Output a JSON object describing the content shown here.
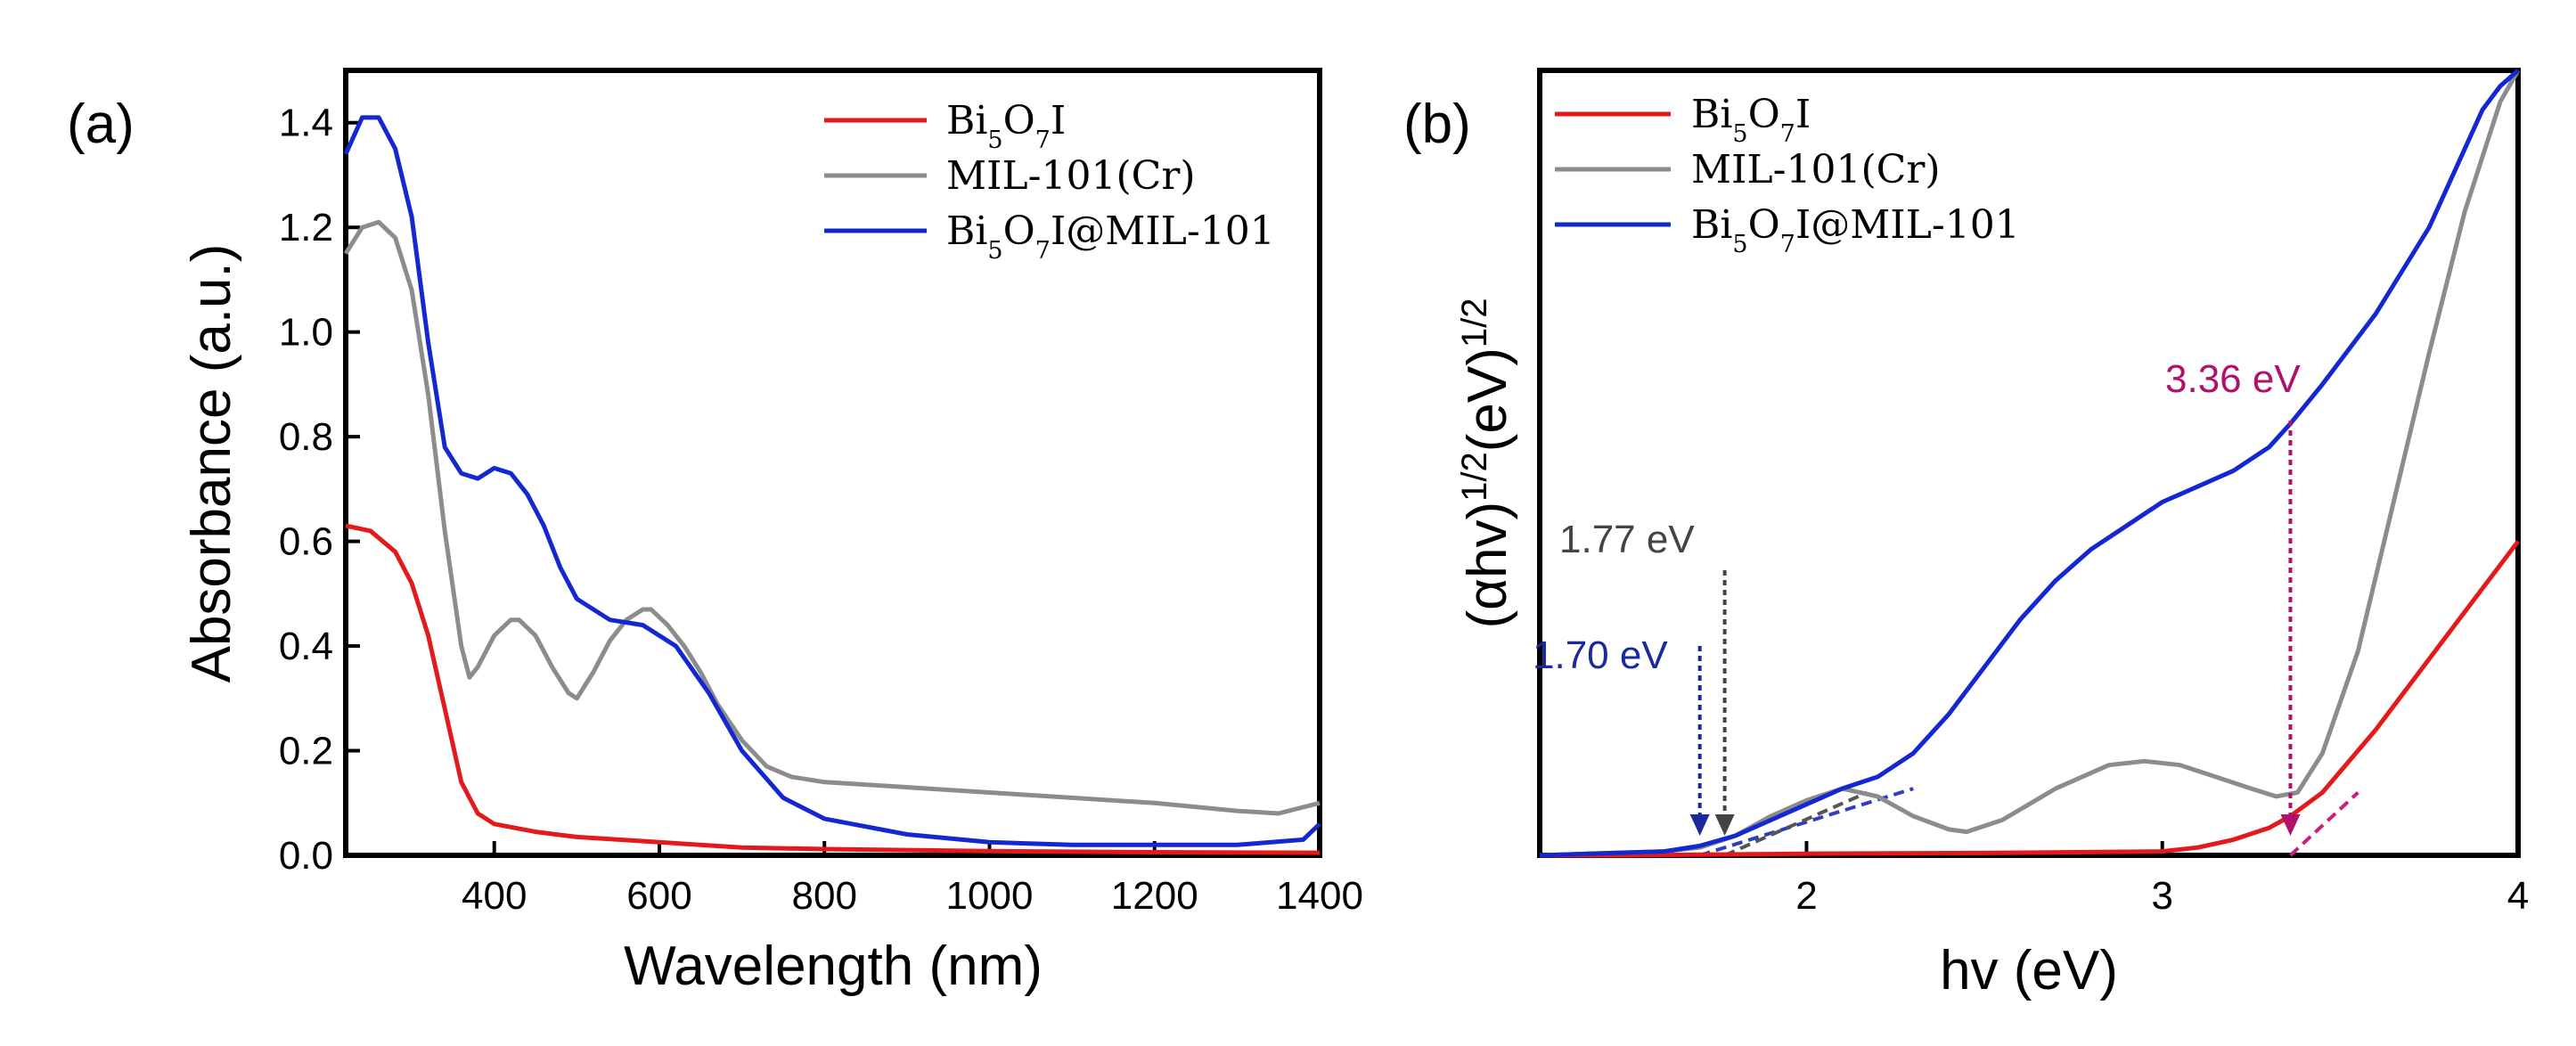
{
  "chart_data": [
    {
      "type": "line",
      "panel_label": "(a)",
      "xlabel": "Wavelength (nm)",
      "ylabel": "Absorbance (a.u.)",
      "xlim": [
        220,
        1400
      ],
      "ylim": [
        0,
        1.5
      ],
      "xticks": [
        400,
        600,
        800,
        1000,
        1200,
        1400
      ],
      "xtick_labels": [
        "400",
        "600",
        "800",
        "1000",
        "1200",
        "1400"
      ],
      "yticks": [
        0.0,
        0.2,
        0.4,
        0.6,
        0.8,
        1.0,
        1.2,
        1.4
      ],
      "ytick_labels": [
        "0.0",
        "0.2",
        "0.4",
        "0.6",
        "0.8",
        "1.0",
        "1.2",
        "1.4"
      ],
      "legend_position": "top-right",
      "series": [
        {
          "name": "Bi5O7I",
          "legend_parts": [
            [
              "Bi",
              ""
            ],
            [
              "5",
              "sub"
            ],
            [
              "O",
              ""
            ],
            [
              "7",
              "sub"
            ],
            [
              "I",
              ""
            ]
          ],
          "color": "#e31a1c",
          "x": [
            220,
            250,
            280,
            300,
            320,
            340,
            360,
            380,
            400,
            450,
            500,
            600,
            700,
            800,
            1000,
            1200,
            1400
          ],
          "y": [
            0.63,
            0.62,
            0.58,
            0.52,
            0.42,
            0.28,
            0.14,
            0.08,
            0.06,
            0.045,
            0.035,
            0.025,
            0.015,
            0.012,
            0.008,
            0.006,
            0.005
          ]
        },
        {
          "name": "MIL-101(Cr)",
          "legend_parts": [
            [
              "MIL-101(Cr)",
              ""
            ]
          ],
          "color": "#8c8c8c",
          "x": [
            220,
            240,
            260,
            280,
            300,
            320,
            340,
            360,
            370,
            380,
            400,
            420,
            430,
            450,
            470,
            490,
            500,
            520,
            540,
            560,
            580,
            590,
            610,
            630,
            650,
            670,
            700,
            730,
            760,
            800,
            900,
            1000,
            1100,
            1200,
            1300,
            1350,
            1400
          ],
          "y": [
            1.15,
            1.2,
            1.21,
            1.18,
            1.08,
            0.88,
            0.62,
            0.4,
            0.34,
            0.36,
            0.42,
            0.45,
            0.45,
            0.42,
            0.36,
            0.31,
            0.3,
            0.35,
            0.41,
            0.45,
            0.47,
            0.47,
            0.44,
            0.4,
            0.35,
            0.29,
            0.22,
            0.17,
            0.15,
            0.14,
            0.13,
            0.12,
            0.11,
            0.1,
            0.085,
            0.08,
            0.1
          ]
        },
        {
          "name": "Bi5O7I@MIL-101",
          "legend_parts": [
            [
              "Bi",
              ""
            ],
            [
              "5",
              "sub"
            ],
            [
              "O",
              ""
            ],
            [
              "7",
              "sub"
            ],
            [
              "I@MIL-101",
              ""
            ]
          ],
          "color": "#1428d2",
          "x": [
            220,
            240,
            260,
            280,
            300,
            320,
            340,
            360,
            380,
            400,
            420,
            440,
            460,
            480,
            500,
            540,
            580,
            620,
            660,
            700,
            750,
            800,
            900,
            1000,
            1100,
            1200,
            1300,
            1380,
            1400
          ],
          "y": [
            1.34,
            1.41,
            1.41,
            1.35,
            1.22,
            0.98,
            0.78,
            0.73,
            0.72,
            0.74,
            0.73,
            0.69,
            0.63,
            0.55,
            0.49,
            0.45,
            0.44,
            0.4,
            0.31,
            0.2,
            0.11,
            0.07,
            0.04,
            0.025,
            0.02,
            0.02,
            0.02,
            0.03,
            0.06
          ]
        }
      ]
    },
    {
      "type": "line",
      "panel_label": "(b)",
      "xlabel": "hv (eV)",
      "ylabel_parts": [
        [
          "(αhv)",
          ""
        ],
        [
          "1/2",
          "sup"
        ],
        [
          "(eV)",
          ""
        ],
        [
          "1/2",
          "sup"
        ]
      ],
      "xlim": [
        1.25,
        4
      ],
      "ylim": [
        0,
        1
      ],
      "xticks": [
        2,
        3,
        4
      ],
      "xtick_labels": [
        "2",
        "3",
        "4"
      ],
      "legend_position": "top-left",
      "series": [
        {
          "name": "Bi5O7I",
          "legend_parts": [
            [
              "Bi",
              ""
            ],
            [
              "5",
              "sub"
            ],
            [
              "O",
              ""
            ],
            [
              "7",
              "sub"
            ],
            [
              "I",
              ""
            ]
          ],
          "color": "#e31a1c",
          "x": [
            1.25,
            1.5,
            2.0,
            2.5,
            3.0,
            3.1,
            3.2,
            3.3,
            3.36,
            3.45,
            3.6,
            3.8,
            4.0
          ],
          "y": [
            0.0,
            0.0,
            0.002,
            0.003,
            0.005,
            0.01,
            0.02,
            0.035,
            0.05,
            0.08,
            0.16,
            0.28,
            0.4
          ]
        },
        {
          "name": "MIL-101(Cr)",
          "legend_parts": [
            [
              "MIL-101(Cr)",
              ""
            ]
          ],
          "color": "#8c8c8c",
          "x": [
            1.25,
            1.6,
            1.7,
            1.8,
            1.9,
            2.0,
            2.1,
            2.2,
            2.3,
            2.4,
            2.45,
            2.55,
            2.7,
            2.85,
            2.95,
            3.05,
            3.15,
            3.25,
            3.32,
            3.38,
            3.45,
            3.55,
            3.65,
            3.75,
            3.85,
            3.95,
            4.0
          ],
          "y": [
            0.0,
            0.005,
            0.01,
            0.025,
            0.05,
            0.07,
            0.085,
            0.075,
            0.05,
            0.033,
            0.03,
            0.045,
            0.085,
            0.115,
            0.12,
            0.115,
            0.1,
            0.085,
            0.075,
            0.08,
            0.13,
            0.26,
            0.45,
            0.64,
            0.82,
            0.96,
            1.0
          ]
        },
        {
          "name": "Bi5O7I@MIL-101",
          "legend_parts": [
            [
              "Bi",
              ""
            ],
            [
              "5",
              "sub"
            ],
            [
              "O",
              ""
            ],
            [
              "7",
              "sub"
            ],
            [
              "I@MIL-101",
              ""
            ]
          ],
          "color": "#1428d2",
          "x": [
            1.25,
            1.6,
            1.7,
            1.8,
            1.9,
            2.0,
            2.1,
            2.2,
            2.3,
            2.4,
            2.5,
            2.6,
            2.7,
            2.8,
            2.9,
            3.0,
            3.1,
            3.2,
            3.3,
            3.36,
            3.45,
            3.6,
            3.75,
            3.9,
            3.95,
            4.0
          ],
          "y": [
            0.0,
            0.005,
            0.012,
            0.025,
            0.045,
            0.065,
            0.085,
            0.1,
            0.13,
            0.18,
            0.24,
            0.3,
            0.35,
            0.39,
            0.42,
            0.45,
            0.47,
            0.49,
            0.52,
            0.55,
            0.6,
            0.69,
            0.8,
            0.95,
            0.98,
            1.0
          ]
        }
      ],
      "tangents": [
        {
          "color": "#2f3dbf",
          "x": [
            1.7,
            2.3
          ],
          "y": [
            0.0,
            0.085
          ]
        },
        {
          "color": "#555555",
          "x": [
            1.77,
            2.17
          ],
          "y": [
            0.0,
            0.08
          ]
        },
        {
          "color": "#c8207d",
          "x": [
            3.36,
            3.55
          ],
          "y": [
            0.0,
            0.08
          ]
        }
      ],
      "annotations": [
        {
          "label": "1.70 eV",
          "x": 1.7,
          "color": "#1a2a9c"
        },
        {
          "label": "1.77 eV",
          "x": 1.77,
          "color": "#444444"
        },
        {
          "label": "3.36 eV",
          "x": 3.36,
          "color": "#b0126b"
        }
      ]
    }
  ]
}
